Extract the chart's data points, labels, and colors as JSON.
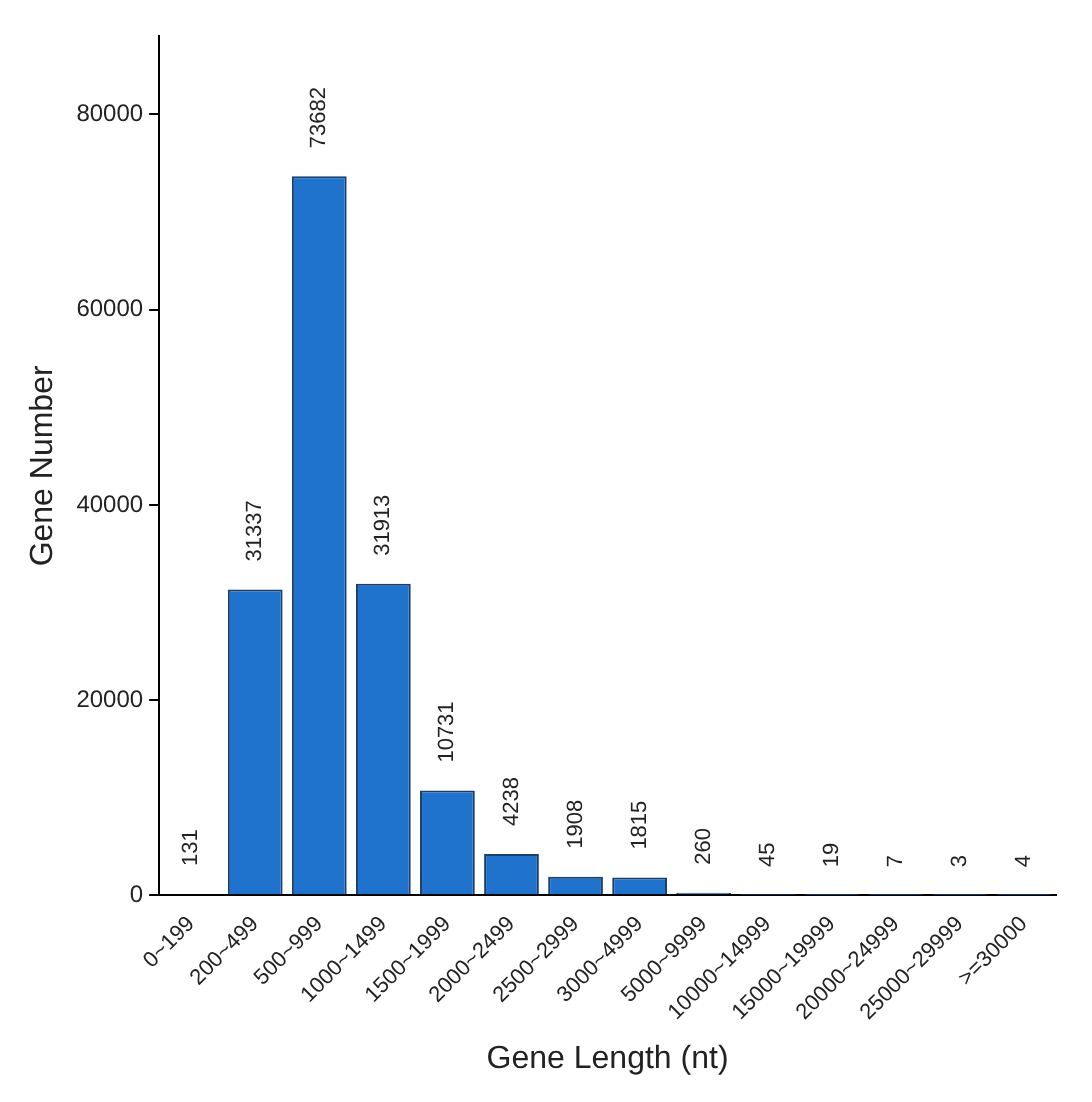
{
  "chart_data": {
    "type": "bar",
    "xlabel": "Gene Length (nt)",
    "ylabel": "Gene Number",
    "categories": [
      "0~199",
      "200~499",
      "500~999",
      "1000~1499",
      "1500~1999",
      "2000~2499",
      "2500~2999",
      "3000~4999",
      "5000~9999",
      "10000~14999",
      "15000~19999",
      "20000~24999",
      "25000~29999",
      ">=30000"
    ],
    "values": [
      131,
      31337,
      73682,
      31913,
      10731,
      4238,
      1908,
      1815,
      260,
      45,
      19,
      7,
      3,
      4
    ],
    "color": "#1f73cc",
    "ylim": [
      0,
      88000
    ],
    "yticks": [
      0,
      20000,
      40000,
      60000,
      80000
    ],
    "grid": false,
    "legend": false,
    "data_labels": true
  }
}
